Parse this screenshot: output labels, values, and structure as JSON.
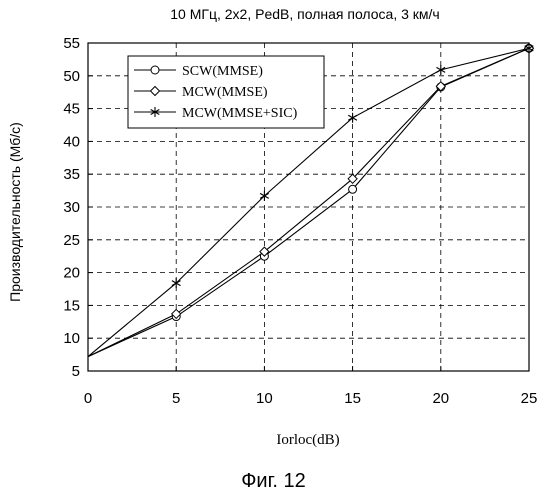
{
  "chart_data": {
    "type": "line",
    "title": "10 МГц, 2x2, PedB, полная полоса, 3 км/ч",
    "xlabel": "Iorloc(dB)",
    "ylabel": "Производительность (Мб/с)",
    "xlim": [
      0,
      25
    ],
    "ylim": [
      5,
      55
    ],
    "xticks": [
      0,
      5,
      10,
      15,
      20,
      25
    ],
    "yticks": [
      5,
      10,
      15,
      20,
      25,
      30,
      35,
      40,
      45,
      50,
      55
    ],
    "grid": true,
    "legend_position": "top-left",
    "series": [
      {
        "name": "SCW(MMSE)",
        "marker": "circle",
        "x": [
          0,
          5,
          10,
          15,
          20,
          25
        ],
        "y": [
          7.2,
          13.3,
          22.5,
          32.7,
          48.3,
          54.2
        ]
      },
      {
        "name": "MCW(MMSE)",
        "marker": "diamond",
        "x": [
          0,
          5,
          10,
          15,
          20,
          25
        ],
        "y": [
          7.2,
          13.7,
          23.2,
          34.3,
          48.4,
          54.2
        ]
      },
      {
        "name": "MCW(MMSE+SIC)",
        "marker": "star",
        "x": [
          0,
          5,
          10,
          15,
          20,
          25
        ],
        "y": [
          7.2,
          18.4,
          31.7,
          43.6,
          50.9,
          54.2
        ]
      }
    ]
  },
  "caption": "Фиг. 12"
}
